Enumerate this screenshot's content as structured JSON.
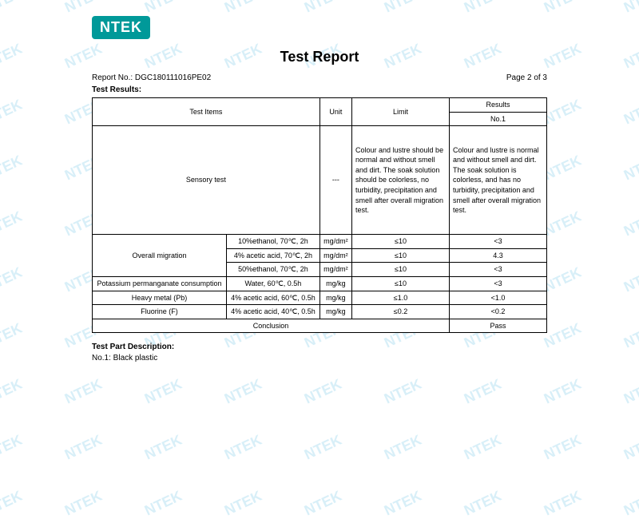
{
  "logo_text": "NTEK",
  "title": "Test Report",
  "report_no_label": "Report No.: ",
  "report_no": "DGC180111016PE02",
  "page_label": "Page 2 of 3",
  "results_label": "Test Results:",
  "table": {
    "headers": {
      "items": "Test Items",
      "unit": "Unit",
      "limit": "Limit",
      "results": "Results",
      "no1": "No.1"
    },
    "rows": [
      {
        "item": "Sensory test",
        "cond": "",
        "unit": "---",
        "limit": "Colour and lustre should be normal and without smell and dirt. The soak solution should be colorless, no turbidity, precipitation and smell after overall migration test.",
        "result": "Colour and lustre is normal and without smell and dirt. The soak solution is colorless, and has no turbidity, precipitation and smell after overall migration test."
      },
      {
        "item": "Overall migration",
        "conds": [
          {
            "c": "10%ethanol, 70℃, 2h",
            "u": "mg/dm²",
            "l": "≤10",
            "r": "<3"
          },
          {
            "c": "4% acetic acid, 70℃, 2h",
            "u": "mg/dm²",
            "l": "≤10",
            "r": "4.3"
          },
          {
            "c": "50%ethanol, 70℃, 2h",
            "u": "mg/dm²",
            "l": "≤10",
            "r": "<3"
          }
        ]
      },
      {
        "item": "Potassium permanganate consumption",
        "cond": "Water, 60℃, 0.5h",
        "unit": "mg/kg",
        "limit": "≤10",
        "result": "<3"
      },
      {
        "item": "Heavy metal (Pb)",
        "cond": "4% acetic acid, 60℃, 0.5h",
        "unit": "mg/kg",
        "limit": "≤1.0",
        "result": "<1.0"
      },
      {
        "item": "Fluorine (F)",
        "cond": "4% acetic acid, 40℃, 0.5h",
        "unit": "mg/kg",
        "limit": "≤0.2",
        "result": "<0.2"
      }
    ],
    "conclusion_label": "Conclusion",
    "conclusion": "Pass"
  },
  "part_desc_label": "Test Part Description:",
  "part_desc": "No.1: Black plastic",
  "watermark_text": "NTEK",
  "watermark_color": "#b3e0f2",
  "logo_bg": "#009999"
}
